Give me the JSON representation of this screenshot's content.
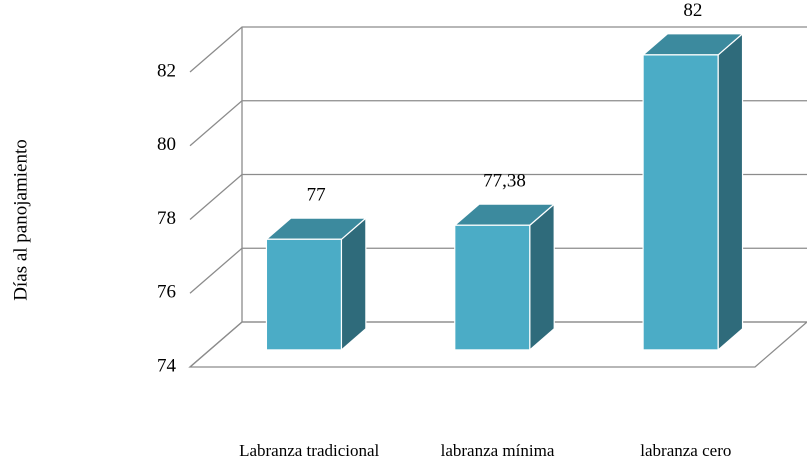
{
  "chart_data": {
    "type": "bar3d",
    "y_label": "Días al panojamiento",
    "categories": [
      "Labranza tradicional",
      "labranza mínima",
      "labranza cero"
    ],
    "values": [
      77,
      77.38,
      82
    ],
    "value_labels": [
      "77",
      "77,38",
      "82"
    ],
    "color": "#4bacc6",
    "ylim": [
      74,
      82
    ],
    "yticks": [
      74,
      76,
      78,
      80,
      82
    ],
    "grid": true
  }
}
